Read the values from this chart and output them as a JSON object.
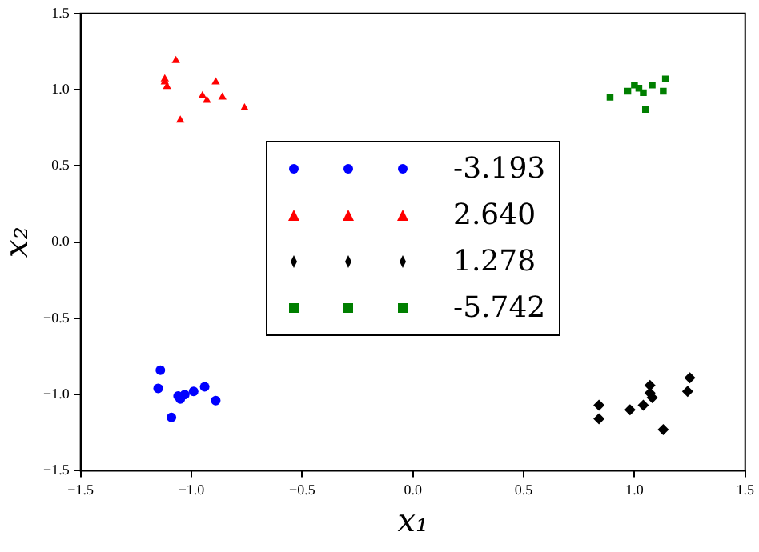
{
  "chart_data": {
    "type": "scatter",
    "xlabel": "x₁",
    "ylabel": "x₂",
    "xlim": [
      -1.5,
      1.5
    ],
    "ylim": [
      -1.5,
      1.5
    ],
    "xticks": [
      {
        "value": -1.5,
        "label": "−1.5"
      },
      {
        "value": -1.0,
        "label": "−1.0"
      },
      {
        "value": -0.5,
        "label": "−0.5"
      },
      {
        "value": 0,
        "label": "0.0"
      },
      {
        "value": 0.5,
        "label": "0.5"
      },
      {
        "value": 1.0,
        "label": "1.0"
      },
      {
        "value": 1.5,
        "label": "1.5"
      }
    ],
    "yticks": [
      {
        "value": -1.5,
        "label": "−1.5"
      },
      {
        "value": -1.0,
        "label": "−1.0"
      },
      {
        "value": -0.5,
        "label": "−0.5"
      },
      {
        "value": 0,
        "label": "0.0"
      },
      {
        "value": 0.5,
        "label": "0.5"
      },
      {
        "value": 1.0,
        "label": "1.0"
      },
      {
        "value": 1.5,
        "label": "1.5"
      }
    ],
    "grid": false,
    "legend": "center",
    "series": [
      {
        "name": "-3.193",
        "color": "#0000ff",
        "marker": "circle",
        "x": [
          -1.14,
          -1.15,
          -1.06,
          -1.05,
          -1.03,
          -0.99,
          -0.94,
          -0.89,
          -1.09
        ],
        "values": [
          -0.84,
          -0.96,
          -1.01,
          -1.03,
          -1.0,
          -0.98,
          -0.95,
          -1.04,
          -1.15
        ]
      },
      {
        "name": "2.640",
        "color": "#ff0000",
        "marker": "triangle",
        "x": [
          -1.07,
          -1.12,
          -1.12,
          -1.11,
          -0.89,
          -0.95,
          -0.93,
          -0.86,
          -0.76,
          -1.05
        ],
        "values": [
          1.19,
          1.07,
          1.05,
          1.02,
          1.05,
          0.96,
          0.93,
          0.95,
          0.88,
          0.8
        ]
      },
      {
        "name": "1.278",
        "color": "#000000",
        "marker": "diamond",
        "x": [
          0.84,
          0.84,
          0.98,
          1.04,
          1.07,
          1.07,
          1.08,
          1.13,
          1.24,
          1.25
        ],
        "values": [
          -1.07,
          -1.16,
          -1.1,
          -1.07,
          -0.94,
          -0.99,
          -1.02,
          -1.23,
          -0.98,
          -0.89
        ]
      },
      {
        "name": "-5.742",
        "color": "#007f00",
        "marker": "square",
        "x": [
          0.89,
          0.97,
          1.0,
          1.02,
          1.04,
          1.08,
          1.14,
          1.13,
          1.05
        ],
        "values": [
          0.95,
          0.99,
          1.03,
          1.01,
          0.98,
          1.03,
          1.07,
          0.99,
          0.87
        ]
      }
    ]
  }
}
